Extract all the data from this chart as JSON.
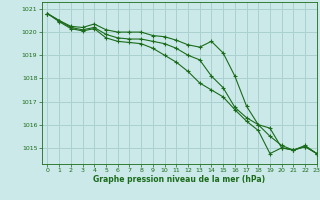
{
  "title": "Graphe pression niveau de la mer (hPa)",
  "background_color": "#cce9e9",
  "grid_color": "#aad0d0",
  "line_color": "#1a6b1a",
  "xlim": [
    -0.5,
    23
  ],
  "ylim": [
    1014.3,
    1021.3
  ],
  "yticks": [
    1015,
    1016,
    1017,
    1018,
    1019,
    1020,
    1021
  ],
  "xticks": [
    0,
    1,
    2,
    3,
    4,
    5,
    6,
    7,
    8,
    9,
    10,
    11,
    12,
    13,
    14,
    15,
    16,
    17,
    18,
    19,
    20,
    21,
    22,
    23
  ],
  "series": [
    [
      1020.8,
      1020.5,
      1020.25,
      1020.2,
      1020.35,
      1020.1,
      1020.0,
      1020.0,
      1020.0,
      1019.85,
      1019.8,
      1019.65,
      1019.45,
      1019.35,
      1019.6,
      1019.1,
      1018.1,
      1016.8,
      1016.0,
      1015.85,
      1015.0,
      1014.9,
      1015.1,
      1014.75
    ],
    [
      1020.8,
      1020.5,
      1020.2,
      1020.1,
      1020.2,
      1019.9,
      1019.75,
      1019.7,
      1019.7,
      1019.6,
      1019.5,
      1019.3,
      1019.0,
      1018.8,
      1018.1,
      1017.6,
      1016.75,
      1016.3,
      1016.0,
      1015.5,
      1015.1,
      1014.9,
      1015.05,
      1014.75
    ],
    [
      1020.8,
      1020.45,
      1020.15,
      1020.05,
      1020.15,
      1019.75,
      1019.6,
      1019.55,
      1019.5,
      1019.3,
      1019.0,
      1018.7,
      1018.3,
      1017.8,
      1017.5,
      1017.2,
      1016.65,
      1016.15,
      1015.75,
      1014.75,
      1015.0,
      1014.9,
      1015.05,
      1014.75
    ]
  ]
}
